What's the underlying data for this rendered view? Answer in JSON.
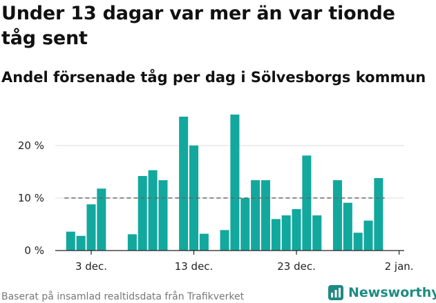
{
  "title": "Under 13 dagar var mer än var tionde tåg sent",
  "subtitle": "Andel försenade tåg per dag i Sölvesborgs kommun",
  "source": "Baserat på insamlad realtidsdata från Trafikverket",
  "brand": "Newsworthy",
  "colors": {
    "bar": "#13a89e",
    "grid": "#dddddd",
    "refline": "#666666",
    "brand": "#1d8b82"
  },
  "chart_data": {
    "type": "bar",
    "title": "Andel försenade tåg per dag i Sölvesborgs kommun",
    "xlabel": "",
    "ylabel": "",
    "ylim": [
      0,
      28
    ],
    "y_ticks": [
      0,
      10,
      20
    ],
    "y_tick_labels": [
      "0 %",
      "10 %",
      "20 %"
    ],
    "x_ticks": [
      {
        "day": 3,
        "label": "3 dec."
      },
      {
        "day": 13,
        "label": "13 dec."
      },
      {
        "day": 23,
        "label": "23 dec."
      },
      {
        "day": 33,
        "label": "2 jan."
      }
    ],
    "x_range": [
      -0.5,
      33.5
    ],
    "reference_line": 10,
    "days": [
      1,
      2,
      3,
      4,
      7,
      8,
      9,
      10,
      12,
      13,
      14,
      16,
      17,
      18,
      19,
      20,
      21,
      22,
      23,
      24,
      25,
      27,
      28,
      29,
      30,
      31
    ],
    "values": [
      3.6,
      2.8,
      8.8,
      11.8,
      3.1,
      14.2,
      15.3,
      13.4,
      25.5,
      20.0,
      3.2,
      3.9,
      25.9,
      10.0,
      13.4,
      13.4,
      6.0,
      6.7,
      7.9,
      18.1,
      6.7,
      13.4,
      9.1,
      3.4,
      5.7,
      13.8
    ]
  }
}
